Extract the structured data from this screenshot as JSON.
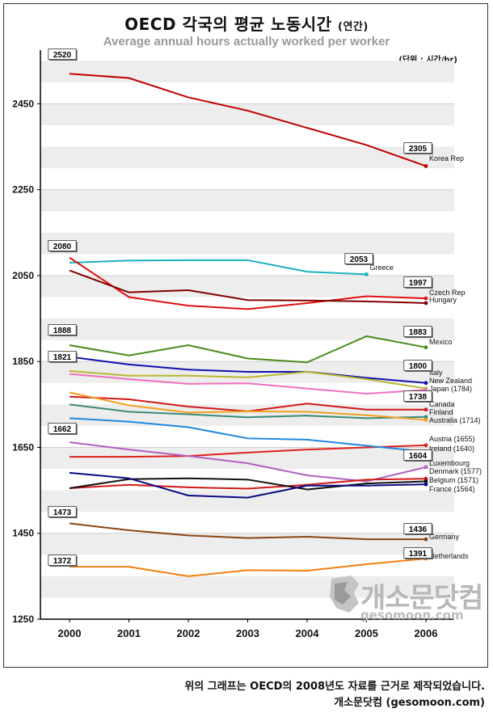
{
  "title": "OECD 각국의 평균 노동시간",
  "title_suffix": "(연간)",
  "subtitle": "Average annual hours actually worked per worker",
  "unit": "(단위 : 시간/hr)",
  "watermark": {
    "logo": "개소문닷컴",
    "url": "gesomoon.com"
  },
  "footer": {
    "note": "위의 그래프는 OECD의 2008년도 자료를 근거로 제작되었습니다.",
    "credit": "개소문닷컴 (gesomoon.com)"
  },
  "chart_data": {
    "type": "line",
    "title": "OECD 각국의 평균 노동시간 (연간)",
    "subtitle": "Average annual hours actually worked per worker",
    "unit": "(단위 : 시간/hr)",
    "x": [
      "2000",
      "2001",
      "2002",
      "2003",
      "2004",
      "2005",
      "2006"
    ],
    "ylim": [
      1250,
      2575
    ],
    "yticks": [
      1250,
      1450,
      1650,
      1850,
      2050,
      2250,
      2450
    ],
    "grid": "alternating horizontal bands",
    "legend": "labels at line ends (right)",
    "series": [
      {
        "name": "Korea Rep",
        "color": "#c00000",
        "values": [
          2520,
          2510,
          2465,
          2434,
          2394,
          2354,
          2305
        ],
        "start_label": "2520",
        "end_label": "2305"
      },
      {
        "name": "Greece",
        "color": "#1ab0c0",
        "values": [
          2080,
          2085,
          2086,
          2086,
          2059,
          2053,
          null
        ],
        "start_label": "2080",
        "end_label": "2053"
      },
      {
        "name": "Czech Rep",
        "color": "#e01010",
        "values": [
          2092,
          2000,
          1980,
          1972,
          1986,
          2002,
          1997
        ],
        "end_label": "1997"
      },
      {
        "name": "Hungary",
        "color": "#800000",
        "values": [
          2062,
          2011,
          2016,
          1993,
          1992,
          1990,
          1986
        ]
      },
      {
        "name": "Mexico",
        "color": "#4a8a1a",
        "values": [
          1888,
          1864,
          1888,
          1857,
          1848,
          1909,
          1883
        ],
        "start_label": "1888",
        "end_label": "1883"
      },
      {
        "name": "Italy",
        "color": "#1010b0",
        "values": [
          1861,
          1843,
          1831,
          1826,
          1826,
          1812,
          1800
        ],
        "end_label": "1800"
      },
      {
        "name": "New Zealand",
        "color": "#b8b830",
        "values": [
          1828,
          1817,
          1817,
          1813,
          1826,
          1809,
          1787
        ]
      },
      {
        "name": "Japan (1784)",
        "color": "#f070c0",
        "values": [
          1821,
          1809,
          1798,
          1799,
          1787,
          1775,
          1784
        ],
        "start_label": "1821"
      },
      {
        "name": "Canada",
        "color": "#d01818",
        "values": [
          1768,
          1762,
          1745,
          1734,
          1752,
          1738,
          1738
        ],
        "end_label": "1738"
      },
      {
        "name": "Finland",
        "color": "#3a8a7a",
        "values": [
          1750,
          1733,
          1727,
          1720,
          1724,
          1718,
          1721
        ]
      },
      {
        "name": "Australia (1714)",
        "color": "#f0a020",
        "values": [
          1778,
          1748,
          1731,
          1734,
          1733,
          1725,
          1714
        ]
      },
      {
        "name": "Austria (1655)",
        "color": "#e02020",
        "values": [
          1628,
          1628,
          1630,
          1638,
          1645,
          1650,
          1655
        ]
      },
      {
        "name": "Ireland (1640)",
        "color": "#1e88e0",
        "values": [
          1718,
          1710,
          1697,
          1671,
          1668,
          1654,
          1640
        ]
      },
      {
        "name": "Luxembourg",
        "color": "#b060c0",
        "values": [
          1662,
          1645,
          1630,
          1613,
          1585,
          1571,
          1604
        ],
        "start_label": "1662",
        "end_label": "1604"
      },
      {
        "name": "Denmark (1577)",
        "color": "#d01818",
        "values": [
          1555,
          1563,
          1557,
          1554,
          1563,
          1575,
          1577
        ]
      },
      {
        "name": "Belgium (1571)",
        "color": "#111111",
        "values": [
          1555,
          1576,
          1578,
          1575,
          1552,
          1566,
          1571
        ]
      },
      {
        "name": "France (1564)",
        "color": "#0a0a80",
        "values": [
          1591,
          1578,
          1538,
          1533,
          1561,
          1561,
          1564
        ]
      },
      {
        "name": "Germany",
        "color": "#8b4513",
        "values": [
          1473,
          1457,
          1445,
          1439,
          1442,
          1436,
          1436
        ],
        "start_label": "1473",
        "end_label": "1436"
      },
      {
        "name": "Netherlands",
        "color": "#f08010",
        "values": [
          1372,
          1372,
          1350,
          1364,
          1363,
          1378,
          1391
        ],
        "start_label": "1372",
        "end_label": "1391"
      }
    ]
  }
}
